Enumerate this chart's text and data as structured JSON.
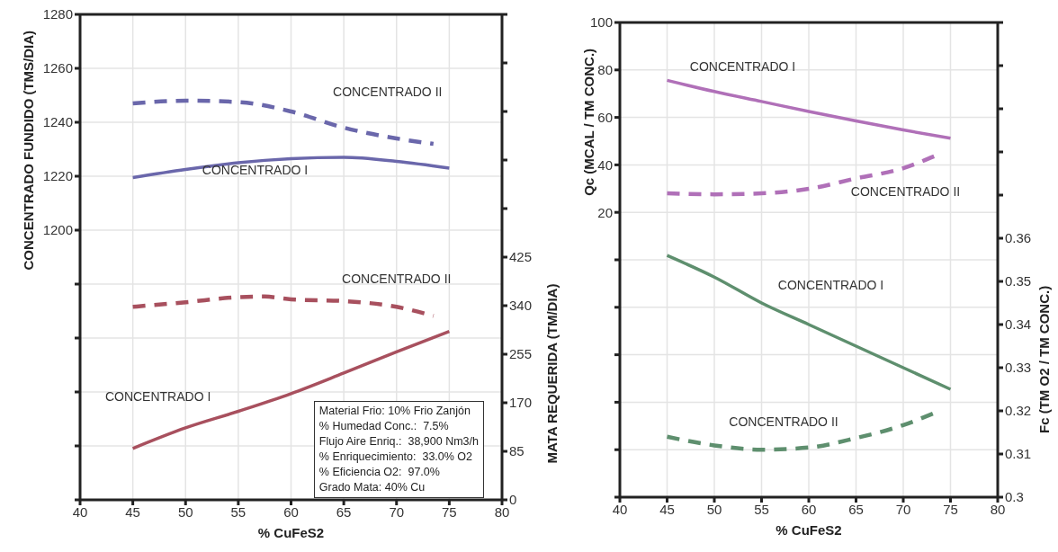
{
  "chart_data": [
    {
      "type": "line",
      "xlabel": "% CuFeS2",
      "ylabel": "CONCENTRADO FUNDIDO (TMS/DIA)",
      "y2label": "MATA REQUERIDA (TM/DIA)",
      "xlim": [
        40,
        80
      ],
      "xticks": [
        40,
        45,
        50,
        55,
        60,
        65,
        70,
        75,
        80
      ],
      "ylim": [
        1100,
        1280
      ],
      "yticks": [
        {
          "value": 1100,
          "label": null
        },
        {
          "value": 1120,
          "label": null
        },
        {
          "value": 1140,
          "label": null
        },
        {
          "value": 1160,
          "label": null
        },
        {
          "value": 1180,
          "label": null
        },
        1200,
        1220,
        1240,
        1260,
        1280
      ],
      "y2lim": [
        0,
        850
      ],
      "y2ticks": [
        0,
        85,
        170,
        255,
        340,
        425,
        {
          "value": 510,
          "label": null
        },
        {
          "value": 595,
          "label": null
        },
        {
          "value": 680,
          "label": null
        },
        {
          "value": 765,
          "label": null
        },
        {
          "value": 850,
          "label": null
        }
      ],
      "grid": true,
      "legend": false,
      "marker": "none",
      "series": [
        {
          "name": "CONCENTRADO II",
          "color": "#6a67ab",
          "line_style": "dashed",
          "x": [
            45,
            50,
            55,
            60,
            65,
            70,
            73.5
          ],
          "values": [
            1247,
            1248,
            1247.5,
            1244,
            1238,
            1234,
            1232
          ]
        },
        {
          "name": "CONCENTRADO I",
          "color": "#6a67ab",
          "line_style": "solid",
          "x": [
            45,
            50,
            55,
            60,
            65,
            70,
            75
          ],
          "values": [
            1219.5,
            1222.5,
            1225,
            1226.5,
            1227,
            1225.5,
            1223
          ]
        },
        {
          "name": "CONCENTRADO II",
          "color": "#a8505e",
          "line_style": "dashed",
          "axis": "y2",
          "x": [
            45,
            50,
            55,
            57.5,
            60,
            65,
            70,
            73.5
          ],
          "values": [
            338,
            346,
            355,
            356,
            351,
            348,
            338,
            322
          ]
        },
        {
          "name": "CONCENTRADO I",
          "color": "#a8505e",
          "line_style": "solid",
          "axis": "y2",
          "x": [
            45,
            50,
            55,
            60,
            65,
            70,
            75
          ],
          "values": [
            90,
            126,
            155,
            186,
            222,
            259,
            295
          ]
        }
      ],
      "annotations": [
        "Material Frio: 10% Frio Zanjón",
        "% Humedad Conc.:  7.5%",
        "Flujo Aire Enriq.:  38,900 Nm3/h",
        "% Enriquecimiento:  33.0% O2",
        "% Eficiencia O2:  97.0%",
        "Grado Mata: 40% Cu"
      ]
    },
    {
      "type": "line",
      "xlabel": "% CuFeS2",
      "ylabel": "Qc (MCAL / TM CONC.)",
      "y2label": "Fc (TM O2 / TM CONC.)",
      "xlim": [
        40,
        80
      ],
      "xticks": [
        40,
        45,
        50,
        55,
        60,
        65,
        70,
        75,
        80
      ],
      "ylim": [
        -100,
        100
      ],
      "yticks": [
        {
          "value": -100,
          "label": null
        },
        {
          "value": -80,
          "label": null
        },
        {
          "value": -60,
          "label": null
        },
        {
          "value": -40,
          "label": null
        },
        {
          "value": -20,
          "label": null
        },
        {
          "value": 0,
          "label": null
        },
        20,
        40,
        60,
        80,
        100
      ],
      "y2lim": [
        0.3,
        0.41
      ],
      "y2ticks": [
        0.3,
        0.31,
        0.32,
        0.33,
        0.34,
        0.35,
        0.36,
        {
          "value": 0.37,
          "label": null
        },
        {
          "value": 0.38,
          "label": null
        },
        {
          "value": 0.39,
          "label": null
        },
        {
          "value": 0.4,
          "label": null
        },
        {
          "value": 0.41,
          "label": null
        }
      ],
      "grid": true,
      "legend": false,
      "marker": "none",
      "series": [
        {
          "name": "CONCENTRADO I",
          "color": "#b070b8",
          "line_style": "solid",
          "x": [
            45,
            50,
            55,
            60,
            65,
            70,
            75
          ],
          "values": [
            75.6,
            70.9,
            66.7,
            62.5,
            58.5,
            54.7,
            51.2
          ]
        },
        {
          "name": "CONCENTRADO II",
          "color": "#b070b8",
          "line_style": "dashed",
          "x": [
            45,
            50,
            55,
            60,
            65,
            70,
            73.5
          ],
          "values": [
            28,
            27.6,
            28,
            29.9,
            34.3,
            38.6,
            44
          ]
        },
        {
          "name": "CONCENTRADO I",
          "color": "#5e8f6e",
          "line_style": "solid",
          "axis": "y2",
          "x": [
            45,
            50,
            55,
            60,
            65,
            70,
            75
          ],
          "values": [
            0.356,
            0.351,
            0.345,
            0.34,
            0.335,
            0.33,
            0.325
          ]
        },
        {
          "name": "CONCENTRADO II",
          "color": "#5e8f6e",
          "line_style": "dashed",
          "axis": "y2",
          "x": [
            45,
            50,
            55,
            60,
            65,
            70,
            73.5
          ],
          "values": [
            0.314,
            0.312,
            0.311,
            0.3115,
            0.3137,
            0.3167,
            0.3197
          ]
        }
      ]
    }
  ]
}
